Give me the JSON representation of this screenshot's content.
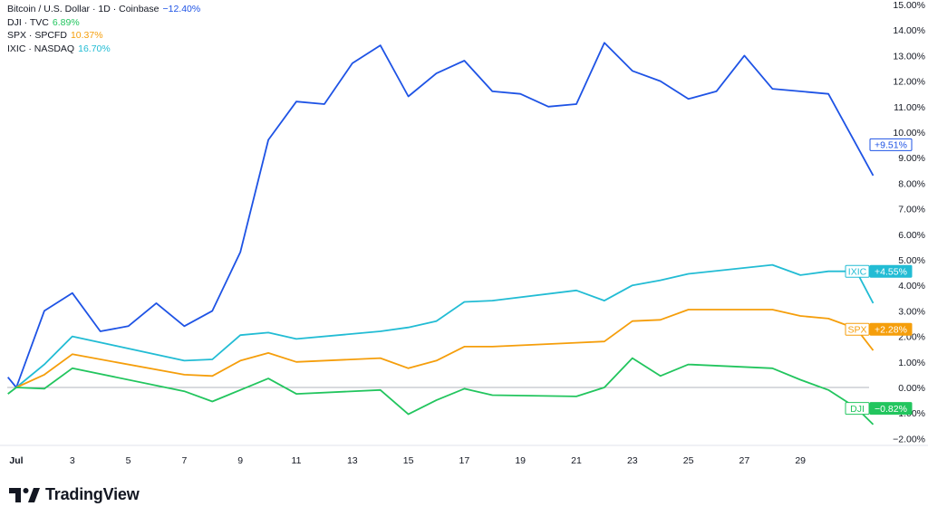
{
  "legend": [
    {
      "label": "Bitcoin / U.S. Dollar · 1D · Coinbase",
      "value": "−12.40%",
      "color": "#1e53e5"
    },
    {
      "label": "DJI · TVC",
      "value": "6.89%",
      "color": "#22c55e"
    },
    {
      "label": "SPX · SPCFD",
      "value": "10.37%",
      "color": "#f59e0b"
    },
    {
      "label": "IXIC · NASDAQ",
      "value": "16.70%",
      "color": "#22bcd4"
    }
  ],
  "brand": {
    "name": "TradingView"
  },
  "chart_data": {
    "type": "line",
    "x_ticks": [
      "Jul",
      "3",
      "5",
      "7",
      "9",
      "11",
      "13",
      "15",
      "17",
      "19",
      "21",
      "23",
      "25",
      "27",
      "29"
    ],
    "x_tick_days": [
      1,
      3,
      5,
      7,
      9,
      11,
      13,
      15,
      17,
      19,
      21,
      23,
      25,
      27,
      29
    ],
    "y_ticks": [
      "15.00%",
      "14.00%",
      "13.00%",
      "12.00%",
      "11.00%",
      "10.00%",
      "9.00%",
      "8.00%",
      "7.00%",
      "6.00%",
      "5.00%",
      "4.00%",
      "3.00%",
      "2.00%",
      "1.00%",
      "0.00%",
      "−1.00%",
      "−2.00%"
    ],
    "y_tick_values": [
      15,
      14,
      13,
      12,
      11,
      10,
      9,
      8,
      7,
      6,
      5,
      4,
      3,
      2,
      1,
      0,
      -1,
      -2
    ],
    "ylim": [
      -2.3,
      15.2
    ],
    "xlim": [
      0.7,
      31.7
    ],
    "zero_line": 0,
    "series": [
      {
        "name": "Bitcoin",
        "color": "#1e53e5",
        "x": [
          0.7,
          1,
          2,
          3,
          4,
          5,
          6,
          7,
          8,
          9,
          10,
          11,
          12,
          13,
          14,
          15,
          16,
          17,
          18,
          19,
          20,
          21,
          22,
          23,
          24,
          25,
          26,
          27,
          28,
          29,
          30,
          31,
          31.6
        ],
        "y": [
          0.4,
          0,
          3.0,
          3.7,
          2.2,
          2.4,
          3.3,
          2.4,
          3.0,
          5.3,
          9.7,
          11.2,
          11.1,
          12.7,
          13.4,
          11.4,
          12.3,
          12.8,
          11.6,
          11.5,
          11.0,
          11.1,
          13.5,
          12.4,
          12.0,
          11.3,
          11.6,
          13.0,
          11.7,
          11.6,
          11.5,
          9.5,
          8.3
        ]
      },
      {
        "name": "IXIC",
        "color": "#22bcd4",
        "x": [
          1,
          2,
          3,
          7,
          8,
          9,
          10,
          11,
          14,
          15,
          16,
          17,
          18,
          21,
          22,
          23,
          24,
          25,
          28,
          29,
          30,
          31,
          31.6
        ],
        "y": [
          0,
          0.9,
          2.0,
          1.05,
          1.1,
          2.05,
          2.15,
          1.9,
          2.2,
          2.35,
          2.6,
          3.35,
          3.4,
          3.8,
          3.4,
          4.0,
          4.2,
          4.45,
          4.8,
          4.4,
          4.55,
          4.55,
          3.3
        ]
      },
      {
        "name": "SPX",
        "color": "#f59e0b",
        "x": [
          1,
          2,
          3,
          7,
          8,
          9,
          10,
          11,
          14,
          15,
          16,
          17,
          18,
          21,
          22,
          23,
          24,
          25,
          28,
          29,
          30,
          31,
          31.6
        ],
        "y": [
          0,
          0.5,
          1.3,
          0.5,
          0.45,
          1.05,
          1.35,
          1.0,
          1.15,
          0.75,
          1.05,
          1.6,
          1.6,
          1.75,
          1.8,
          2.6,
          2.65,
          3.05,
          3.05,
          2.8,
          2.7,
          2.3,
          1.45
        ]
      },
      {
        "name": "DJI",
        "color": "#22c55e",
        "x": [
          0.7,
          1,
          2,
          3,
          7,
          8,
          9,
          10,
          11,
          14,
          15,
          16,
          17,
          18,
          21,
          22,
          23,
          24,
          25,
          28,
          29,
          30,
          31,
          31.6
        ],
        "y": [
          -0.25,
          0,
          -0.05,
          0.75,
          -0.15,
          -0.55,
          -0.1,
          0.35,
          -0.25,
          -0.1,
          -1.05,
          -0.5,
          -0.05,
          -0.3,
          -0.35,
          0.0,
          1.15,
          0.45,
          0.9,
          0.75,
          0.3,
          -0.1,
          -0.8,
          -1.45
        ]
      }
    ],
    "price_labels": [
      {
        "series": "Bitcoin",
        "ticker": "",
        "text": "+9.51%",
        "value": 9.51,
        "color": "#1e53e5"
      },
      {
        "series": "IXIC",
        "ticker": "IXIC",
        "text": "+4.55%",
        "value": 4.55,
        "color": "#22bcd4"
      },
      {
        "series": "SPX",
        "ticker": "SPX",
        "text": "+2.28%",
        "value": 2.28,
        "color": "#f59e0b"
      },
      {
        "series": "DJI",
        "ticker": "DJI",
        "text": "−0.82%",
        "value": -0.82,
        "color": "#22c55e"
      }
    ]
  }
}
